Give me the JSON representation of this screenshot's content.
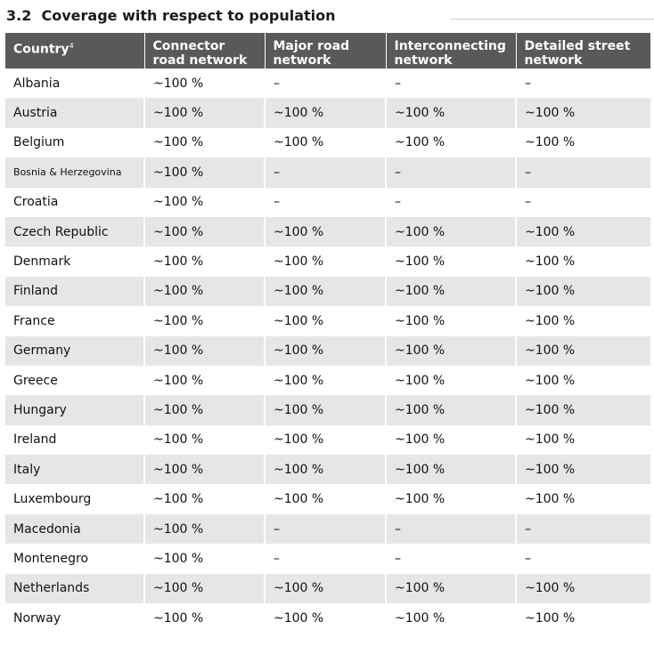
{
  "section": {
    "number": "3.2",
    "title": "Coverage with respect to population"
  },
  "table": {
    "headers": {
      "country": "Country",
      "country_footnote": "4",
      "connector": [
        "Connector",
        "road network"
      ],
      "major": [
        "Major road",
        "network"
      ],
      "interconnecting": [
        "Interconnecting",
        "network"
      ],
      "detailed": [
        "Detailed street",
        "network"
      ]
    },
    "rows": [
      {
        "country": "Albania",
        "connector": "~100 %",
        "major": "–",
        "interconnecting": "–",
        "detailed": "–"
      },
      {
        "country": "Austria",
        "connector": "~100 %",
        "major": "~100 %",
        "interconnecting": "~100 %",
        "detailed": "~100 %"
      },
      {
        "country": "Belgium",
        "connector": "~100 %",
        "major": "~100 %",
        "interconnecting": "~100 %",
        "detailed": "~100 %"
      },
      {
        "country": "Bosnia & Herzegovina",
        "connector": "~100 %",
        "major": "–",
        "interconnecting": "–",
        "detailed": "–",
        "small": true
      },
      {
        "country": "Croatia",
        "connector": "~100 %",
        "major": "–",
        "interconnecting": "–",
        "detailed": "–"
      },
      {
        "country": "Czech Republic",
        "connector": "~100 %",
        "major": "~100 %",
        "interconnecting": "~100 %",
        "detailed": "~100 %"
      },
      {
        "country": "Denmark",
        "connector": "~100 %",
        "major": "~100 %",
        "interconnecting": "~100 %",
        "detailed": "~100 %"
      },
      {
        "country": "Finland",
        "connector": "~100 %",
        "major": "~100 %",
        "interconnecting": "~100 %",
        "detailed": "~100 %"
      },
      {
        "country": "France",
        "connector": "~100 %",
        "major": "~100 %",
        "interconnecting": "~100 %",
        "detailed": "~100 %"
      },
      {
        "country": "Germany",
        "connector": "~100 %",
        "major": "~100 %",
        "interconnecting": "~100 %",
        "detailed": "~100 %"
      },
      {
        "country": "Greece",
        "connector": "~100 %",
        "major": "~100 %",
        "interconnecting": "~100 %",
        "detailed": "~100 %"
      },
      {
        "country": "Hungary",
        "connector": "~100 %",
        "major": "~100 %",
        "interconnecting": "~100 %",
        "detailed": "~100 %"
      },
      {
        "country": "Ireland",
        "connector": "~100 %",
        "major": "~100 %",
        "interconnecting": "~100 %",
        "detailed": "~100 %"
      },
      {
        "country": "Italy",
        "connector": "~100 %",
        "major": "~100 %",
        "interconnecting": "~100 %",
        "detailed": "~100 %"
      },
      {
        "country": "Luxembourg",
        "connector": "~100 %",
        "major": "~100 %",
        "interconnecting": "~100 %",
        "detailed": "~100 %"
      },
      {
        "country": "Macedonia",
        "connector": "~100 %",
        "major": "–",
        "interconnecting": "–",
        "detailed": "–"
      },
      {
        "country": "Montenegro",
        "connector": "~100 %",
        "major": "–",
        "interconnecting": "–",
        "detailed": "–"
      },
      {
        "country": "Netherlands",
        "connector": "~100 %",
        "major": "~100 %",
        "interconnecting": "~100 %",
        "detailed": "~100 %"
      },
      {
        "country": "Norway",
        "connector": "~100 %",
        "major": "~100 %",
        "interconnecting": "~100 %",
        "detailed": "~100 %"
      }
    ]
  },
  "colors": {
    "header_bg": "#595959",
    "header_text": "#ffffff",
    "stripe": "#e6e6e6",
    "column_rule": "#7f7f7f"
  }
}
